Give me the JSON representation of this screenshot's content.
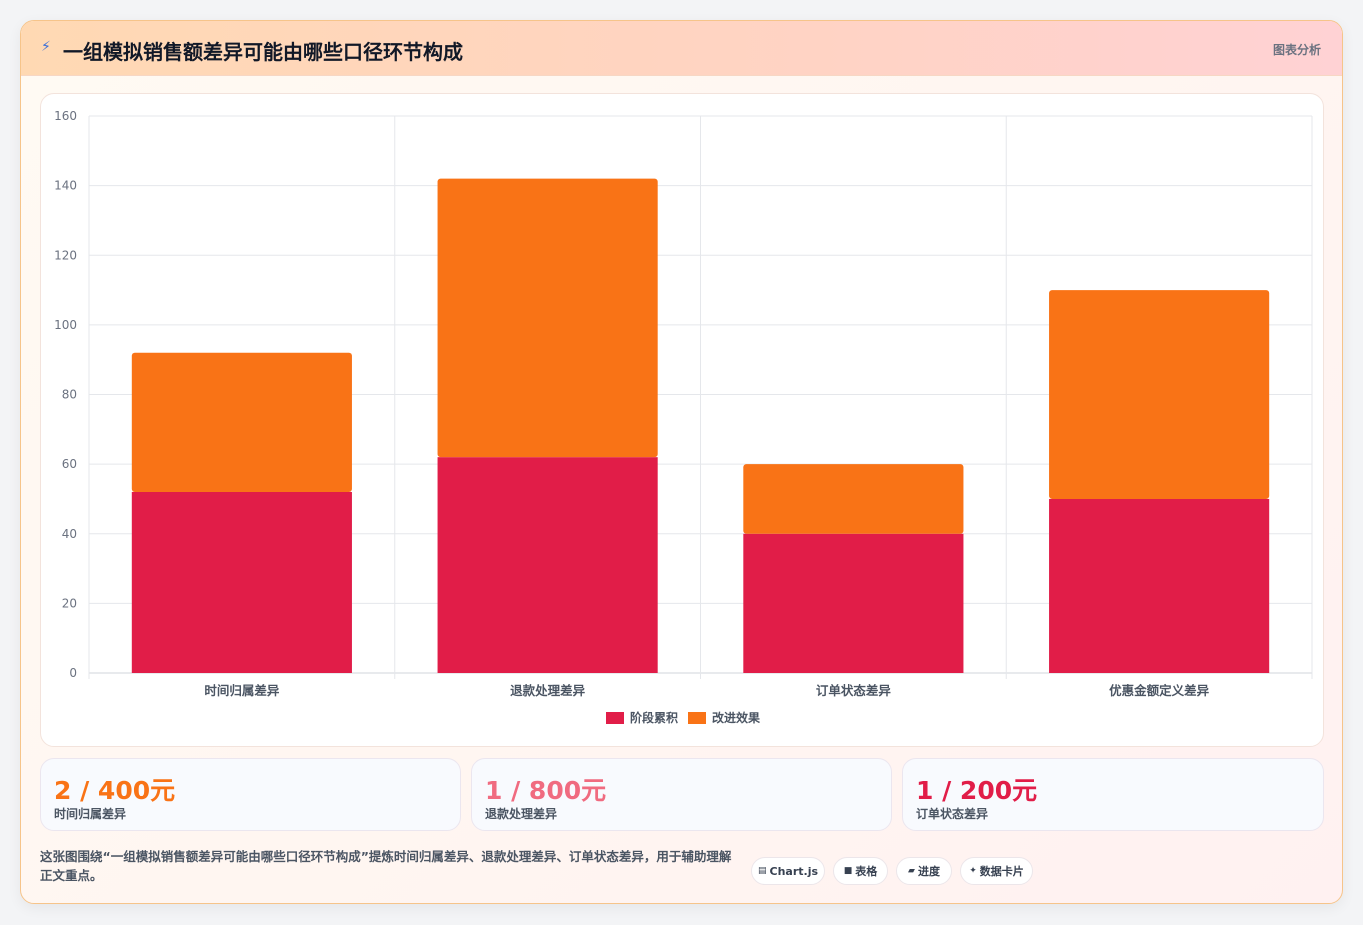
{
  "header": {
    "icon": "lightning-icon",
    "title": "一组模拟销售额差异可能由哪些口径环节构成",
    "badge": "图表分析"
  },
  "chart_data": {
    "type": "bar",
    "stacked": true,
    "categories": [
      "时间归属差异",
      "退款处理差异",
      "订单状态差异",
      "优惠金额定义差异"
    ],
    "series": [
      {
        "name": "阶段累积",
        "color": "#e11d48",
        "values": [
          52,
          62,
          40,
          50
        ]
      },
      {
        "name": "改进效果",
        "color": "#f97316",
        "values": [
          40,
          80,
          20,
          60
        ]
      }
    ],
    "ylim": [
      0,
      160
    ],
    "yticks": [
      0,
      20,
      40,
      60,
      80,
      100,
      120,
      140,
      160
    ],
    "grid": true,
    "legend": "bottom"
  },
  "stats": [
    {
      "value": "2 / 400元",
      "label": "时间归属差异",
      "color": "#f97316"
    },
    {
      "value": "1 / 800元",
      "label": "退款处理差异",
      "color": "#f06b80"
    },
    {
      "value": "1 / 200元",
      "label": "订单状态差异",
      "color": "#e11d48"
    }
  ],
  "description": "这张图围绕“一组模拟销售额差异可能由哪些口径环节构成”提炼时间归属差异、退款处理差异、订单状态差异，用于辅助理解正文重点。",
  "chips": [
    {
      "icon": "chart-icon",
      "glyph": "▤",
      "label": "Chart.js"
    },
    {
      "icon": "table-icon",
      "glyph": "■",
      "label": "表格"
    },
    {
      "icon": "progress-icon",
      "glyph": "▰",
      "label": "进度"
    },
    {
      "icon": "sparkle-icon",
      "glyph": "✦",
      "label": "数据卡片"
    }
  ]
}
